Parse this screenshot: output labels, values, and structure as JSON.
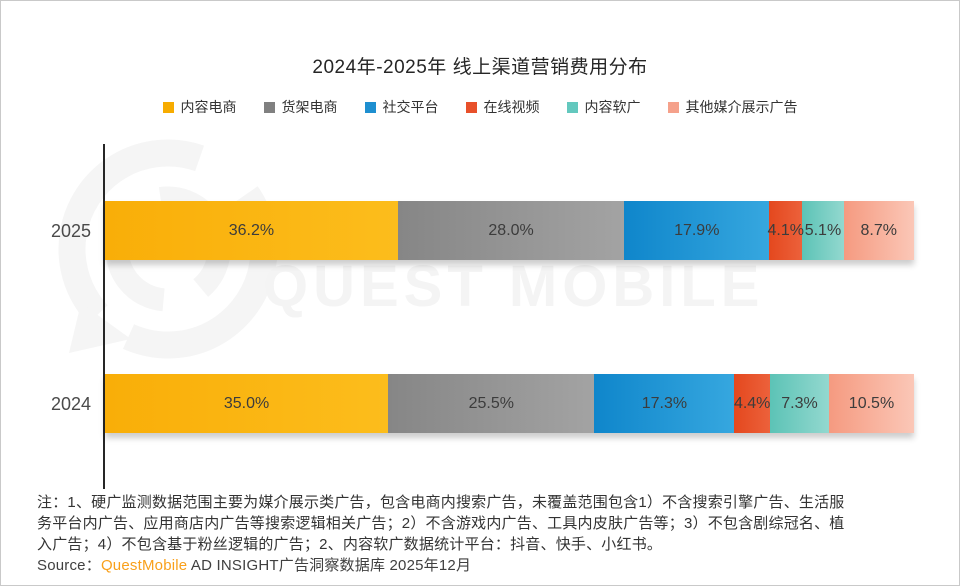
{
  "page": {
    "title": "2024年-2025年 线上渠道营销费用分布",
    "watermark_text": "QUEST MOBILE"
  },
  "chart_data": {
    "type": "bar",
    "orientation": "horizontal_stacked",
    "title": "2024年-2025年 线上渠道营销费用分布",
    "categories": [
      "2025",
      "2024"
    ],
    "unit": "%",
    "xlim": [
      0,
      100
    ],
    "legend_position": "top-center",
    "grid": false,
    "series": [
      {
        "name": "内容电商",
        "legend_color": "#F7AC00",
        "color_start": "#F9AE08",
        "color_end": "#FCBD1C",
        "values": [
          36.2,
          35.0
        ]
      },
      {
        "name": "货架电商",
        "legend_color": "#808080",
        "color_start": "#868686",
        "color_end": "#A3A3A3",
        "values": [
          28.0,
          25.5
        ]
      },
      {
        "name": "社交平台",
        "legend_color": "#1E8FD0",
        "color_start": "#0F86CB",
        "color_end": "#36A7DF",
        "values": [
          17.9,
          17.3
        ]
      },
      {
        "name": "在线视频",
        "legend_color": "#E8502A",
        "color_start": "#E4481E",
        "color_end": "#EC613B",
        "values": [
          4.1,
          4.4
        ]
      },
      {
        "name": "内容软广",
        "legend_color": "#63C8BE",
        "color_start": "#5CC3B6",
        "color_end": "#93D8CF",
        "values": [
          5.1,
          7.3
        ]
      },
      {
        "name": "其他媒介展示广告",
        "legend_color": "#F5A18B",
        "color_start": "#F59A80",
        "color_end": "#FBC7B7",
        "values": [
          8.7,
          10.5
        ]
      }
    ],
    "data_labels": [
      [
        "36.2%",
        "28.0%",
        "17.9%",
        "4.1%",
        "5.1%",
        "8.7%"
      ],
      [
        "35.0%",
        "25.5%",
        "17.3%",
        "4.4%",
        "7.3%",
        "10.5%"
      ]
    ]
  },
  "notes": {
    "line1": "注：1、硬广监测数据范围主要为媒介展示类广告，包含电商内搜索广告，未覆盖范围包含1）不含搜索引擎广告、生活服",
    "line2": "务平台内广告、应用商店内广告等搜索逻辑相关广告；2）不含游戏内广告、工具内皮肤广告等；3）不包含剧综冠名、植",
    "line3": "入广告；4）不包含基于粉丝逻辑的广告；2、内容软广数据统计平台：抖音、快手、小红书。"
  },
  "source": {
    "prefix": "Source：",
    "brand": "QuestMobile",
    "rest": " AD INSIGHT广告洞察数据库 2025年12月",
    "brand_color": "#F9A01B"
  }
}
